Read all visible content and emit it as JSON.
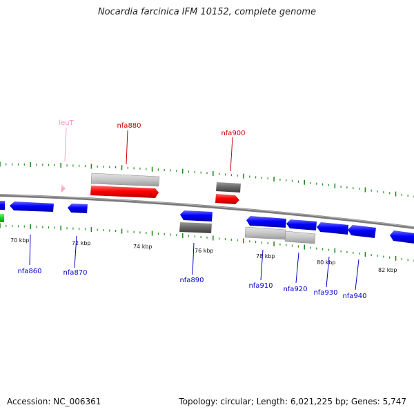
{
  "title": "Nocardia farcinica IFM 10152, complete genome",
  "footer": {
    "accession": "Accession: NC_006361",
    "topology": "Topology: circular; Length: 6,021,225 bp; Genes: 5,747"
  },
  "scale_labels": [
    "70 kbp",
    "72 kbp",
    "74 kbp",
    "76 kbp",
    "78 kbp",
    "80 kbp",
    "82 kbp"
  ],
  "gene_labels": {
    "top": [
      "leuT",
      "nfa880",
      "nfa900"
    ],
    "bottom": [
      "nfa860",
      "nfa870",
      "nfa890",
      "nfa910",
      "nfa920",
      "nfa930",
      "nfa940"
    ]
  },
  "colors": {
    "forward_cds": "#ff0000",
    "reverse_cds": "#0000ff",
    "trna": "#ff9ec8",
    "rna": "#33cc33",
    "tick": "#228b22",
    "backbone": "#888888",
    "top_label": "#cc0000",
    "bottom_label": "#0000cc",
    "trna_label": "#ff8fc0"
  }
}
